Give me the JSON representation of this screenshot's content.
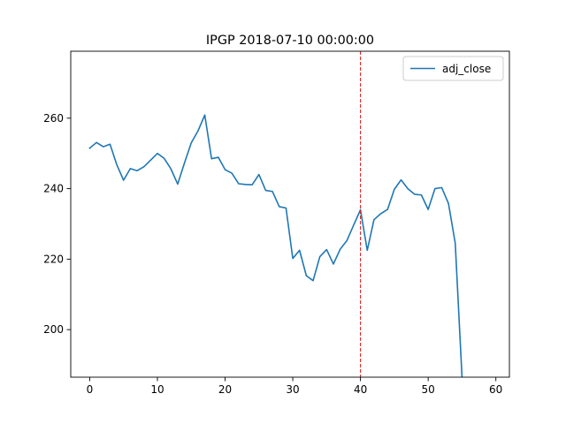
{
  "chart_data": {
    "type": "line",
    "title": "IPGP 2018-07-10 00:00:00",
    "xlabel": "",
    "ylabel": "",
    "xlim": [
      -2.8,
      62
    ],
    "ylim": [
      186.5,
      279
    ],
    "x_ticks": [
      0,
      10,
      20,
      30,
      40,
      50,
      60
    ],
    "y_ticks": [
      200,
      220,
      240,
      260
    ],
    "grid": false,
    "legend_position": "top-right",
    "vline": {
      "x": 40,
      "color": "#d62728",
      "style": "dashed"
    },
    "series": [
      {
        "name": "adj_close",
        "color": "#1f77b4",
        "x": [
          0,
          1,
          2,
          3,
          4,
          5,
          6,
          7,
          8,
          9,
          10,
          11,
          12,
          13,
          14,
          15,
          16,
          17,
          18,
          19,
          20,
          21,
          22,
          23,
          24,
          25,
          26,
          27,
          28,
          29,
          30,
          31,
          32,
          33,
          34,
          35,
          36,
          37,
          38,
          39,
          40,
          41,
          42,
          43,
          44,
          45,
          46,
          47,
          48,
          49,
          50,
          51,
          52,
          53,
          54,
          55
        ],
        "y": [
          251.5,
          253.1,
          251.9,
          252.6,
          246.8,
          242.4,
          245.7,
          245.1,
          246.2,
          248.1,
          250.0,
          248.6,
          245.6,
          241.3,
          247.3,
          253.0,
          256.4,
          260.9,
          248.5,
          248.9,
          245.4,
          244.4,
          241.4,
          241.2,
          241.1,
          244.0,
          239.5,
          239.2,
          234.9,
          234.5,
          220.2,
          222.5,
          215.3,
          213.9,
          220.7,
          222.7,
          218.6,
          222.8,
          225.3,
          229.7,
          234.0,
          222.5,
          231.2,
          232.9,
          234.1,
          239.8,
          242.5,
          240.0,
          238.4,
          238.2,
          234.1,
          240.0,
          240.3,
          235.8,
          224.5,
          186.5
        ]
      }
    ]
  }
}
